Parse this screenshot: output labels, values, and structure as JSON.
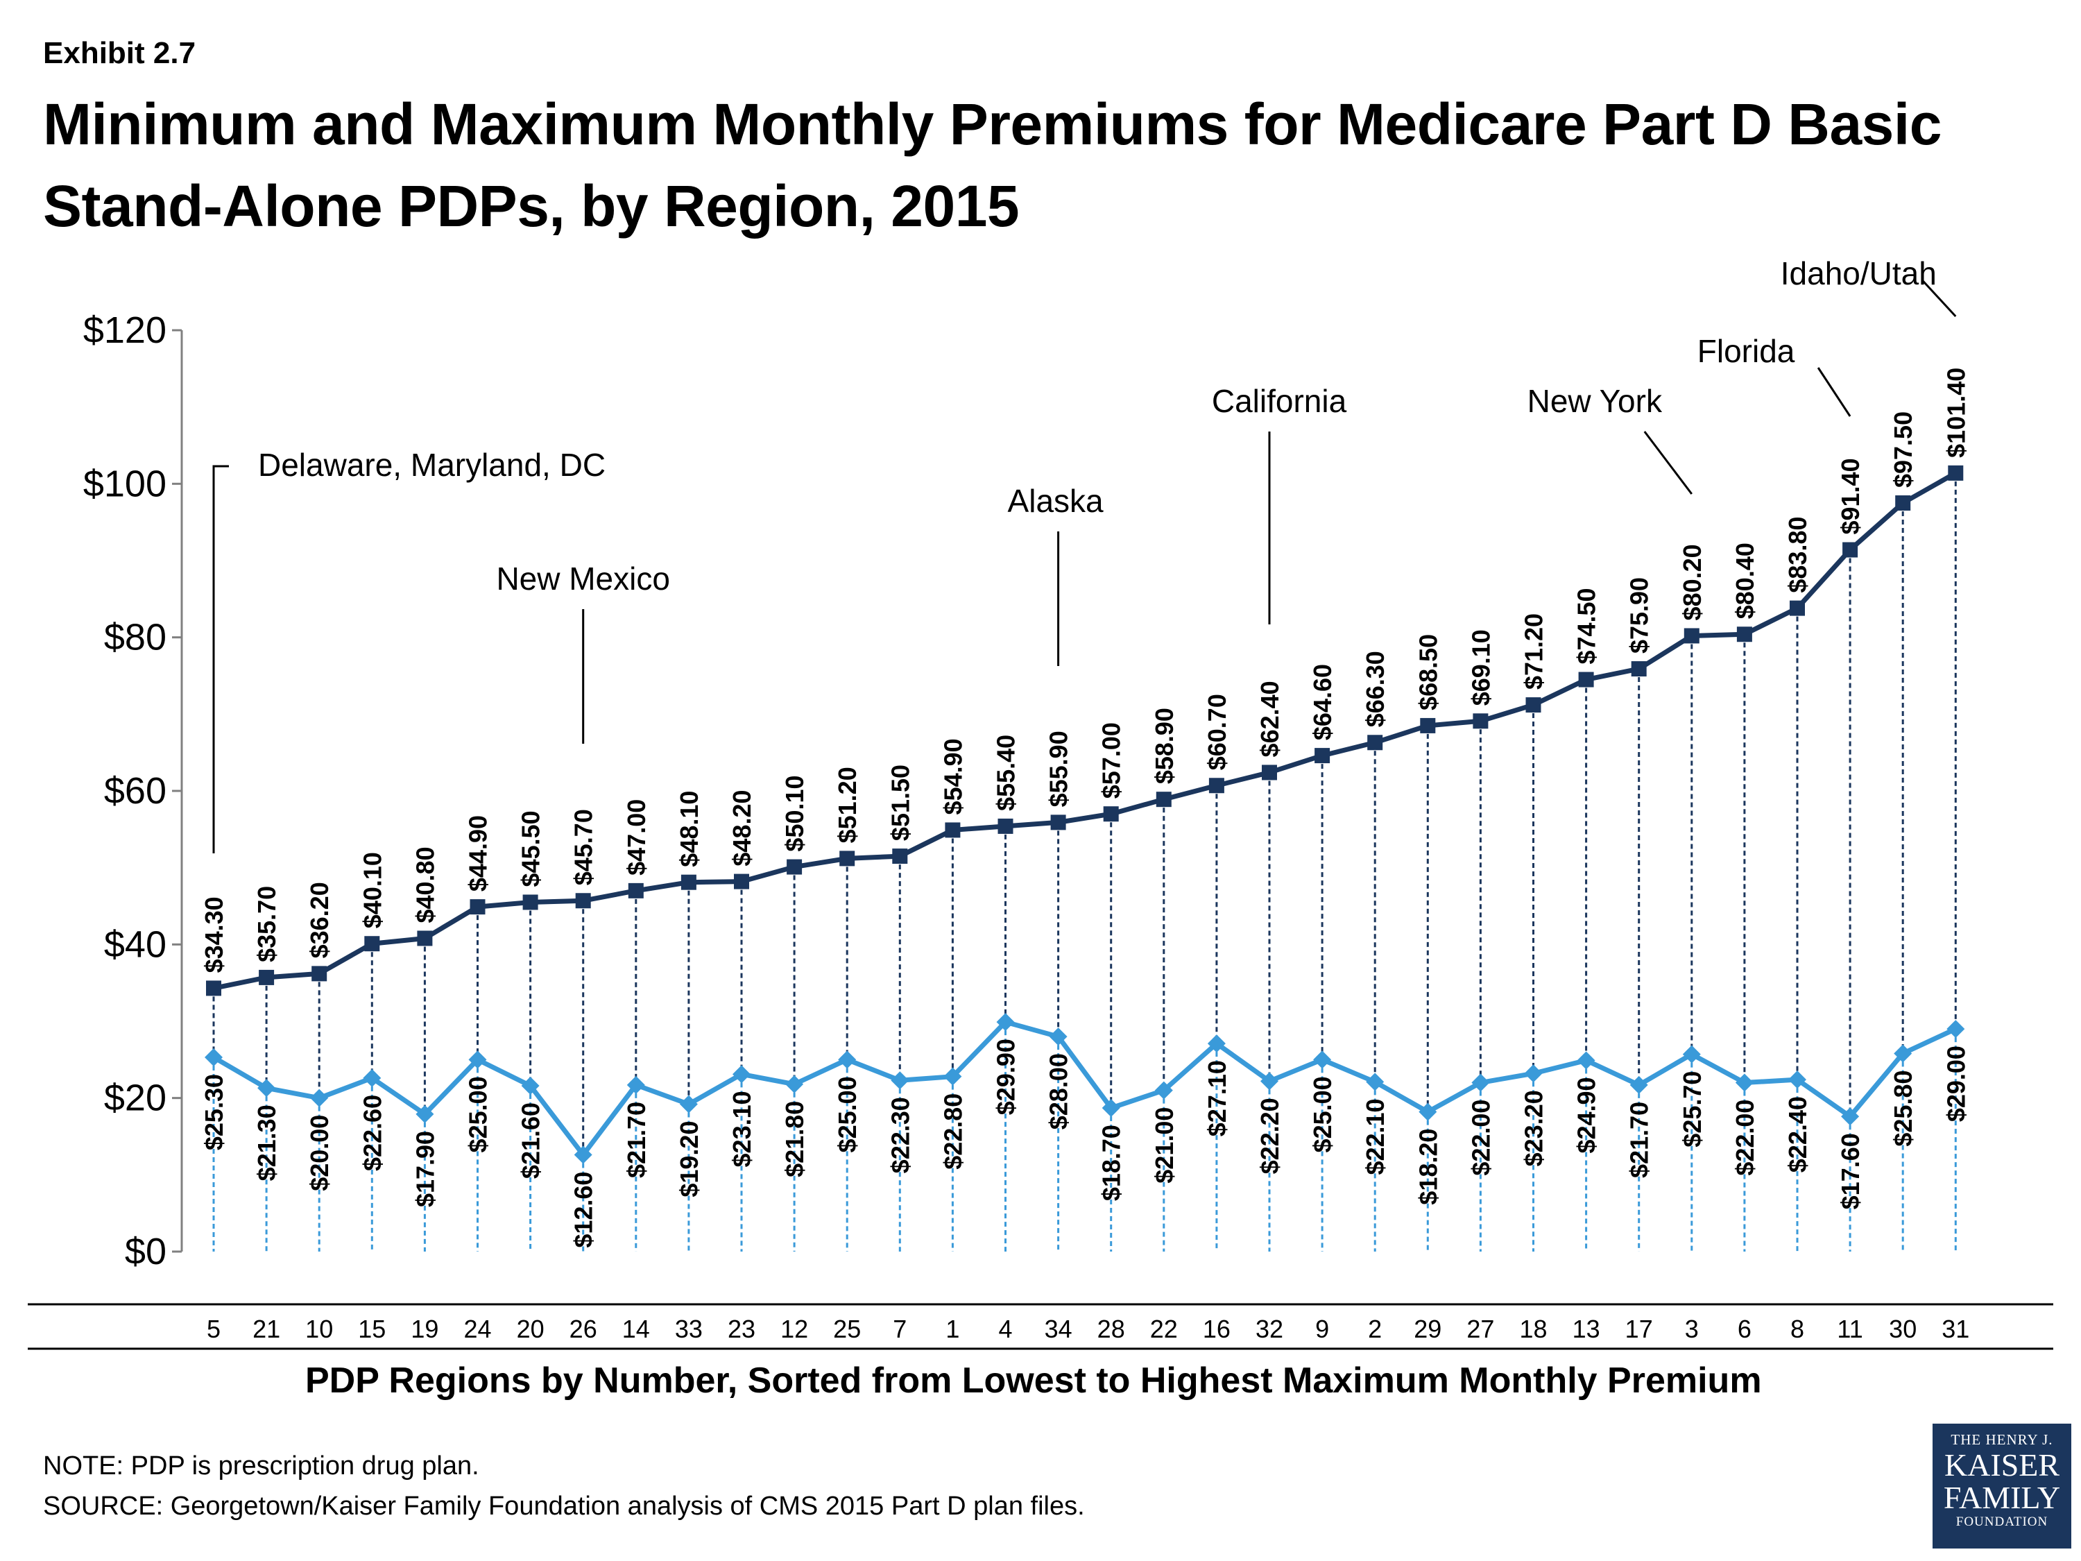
{
  "exhibit_label": "Exhibit 2.7",
  "title": "Minimum and Maximum Monthly Premiums for Medicare Part D Basic Stand-Alone PDPs, by Region, 2015",
  "note": "NOTE: PDP is prescription drug plan.",
  "source": "SOURCE: Georgetown/Kaiser Family Foundation analysis of CMS 2015 Part D plan files.",
  "logo": {
    "line1": "THE HENRY J.",
    "line2": "KAISER",
    "line3": "FAMILY",
    "line4": "FOUNDATION"
  },
  "colors": {
    "max_series": "#1b365d",
    "min_series": "#3a9ad9",
    "axis": "#808080"
  },
  "chart_data": {
    "type": "line",
    "xlabel": "PDP Regions by Number, Sorted from Lowest to Highest Maximum Monthly Premium",
    "ylabel": "",
    "ylim": [
      0,
      120
    ],
    "y_ticks": [
      {
        "value": 0,
        "label": "$0"
      },
      {
        "value": 20,
        "label": "$20"
      },
      {
        "value": 40,
        "label": "$40"
      },
      {
        "value": 60,
        "label": "$60"
      },
      {
        "value": 80,
        "label": "$80"
      },
      {
        "value": 100,
        "label": "$100"
      },
      {
        "value": 120,
        "label": "$120"
      }
    ],
    "grid": false,
    "legend": "none",
    "categories": [
      "5",
      "21",
      "10",
      "15",
      "19",
      "24",
      "20",
      "26",
      "14",
      "33",
      "23",
      "12",
      "25",
      "7",
      "1",
      "4",
      "34",
      "28",
      "22",
      "16",
      "32",
      "9",
      "2",
      "29",
      "27",
      "18",
      "13",
      "17",
      "3",
      "6",
      "8",
      "11",
      "30",
      "31"
    ],
    "series": [
      {
        "values": [
          34.3,
          35.7,
          36.2,
          40.1,
          40.8,
          44.9,
          45.5,
          45.7,
          47.0,
          48.1,
          48.2,
          50.1,
          51.2,
          51.5,
          54.9,
          55.4,
          55.9,
          57.0,
          58.9,
          60.7,
          62.4,
          64.6,
          66.3,
          68.5,
          69.1,
          71.2,
          74.5,
          75.9,
          80.2,
          80.4,
          83.8,
          91.4,
          97.5,
          101.4
        ],
        "labels": [
          "$34.30",
          "$35.70",
          "$36.20",
          "$40.10",
          "$40.80",
          "$44.90",
          "$45.50",
          "$45.70",
          "$47.00",
          "$48.10",
          "$48.20",
          "$50.10",
          "$51.20",
          "$51.50",
          "$54.90",
          "$55.40",
          "$55.90",
          "$57.00",
          "$58.90",
          "$60.70",
          "$62.40",
          "$64.60",
          "$66.30",
          "$68.50",
          "$69.10",
          "$71.20",
          "$74.50",
          "$75.90",
          "$80.20",
          "$80.40",
          "$83.80",
          "$91.40",
          "$97.50",
          "$101.40"
        ]
      },
      {
        "values": [
          25.3,
          21.3,
          20.0,
          22.6,
          17.9,
          25.0,
          21.6,
          12.6,
          21.7,
          19.2,
          23.1,
          21.8,
          25.0,
          22.3,
          22.8,
          29.9,
          28.0,
          18.7,
          21.0,
          27.1,
          22.2,
          25.0,
          22.1,
          18.2,
          22.0,
          23.2,
          24.9,
          21.7,
          25.7,
          22.0,
          22.4,
          17.6,
          25.8,
          29.0
        ],
        "labels": [
          "$25.30",
          "$21.30",
          "$20.00",
          "$22.60",
          "$17.90",
          "$25.00",
          "$21.60",
          "$12.60",
          "$21.70",
          "$19.20",
          "$23.10",
          "$21.80",
          "$25.00",
          "$22.30",
          "$22.80",
          "$29.90",
          "$28.00",
          "$18.70",
          "$21.00",
          "$27.10",
          "$22.20",
          "$25.00",
          "$22.10",
          "$18.20",
          "$22.00",
          "$23.20",
          "$24.90",
          "$21.70",
          "$25.70",
          "$22.00",
          "$22.40",
          "$17.60",
          "$25.80",
          "$29.00"
        ]
      }
    ],
    "annotations": [
      {
        "text": "Delaware, Maryland, DC",
        "category": "5"
      },
      {
        "text": "New Mexico",
        "category": "26"
      },
      {
        "text": "Alaska",
        "category": "34"
      },
      {
        "text": "California",
        "category": "32"
      },
      {
        "text": "New York",
        "category": "3"
      },
      {
        "text": "Florida",
        "category": "11"
      },
      {
        "text": "Idaho/Utah",
        "category": "31"
      }
    ]
  }
}
